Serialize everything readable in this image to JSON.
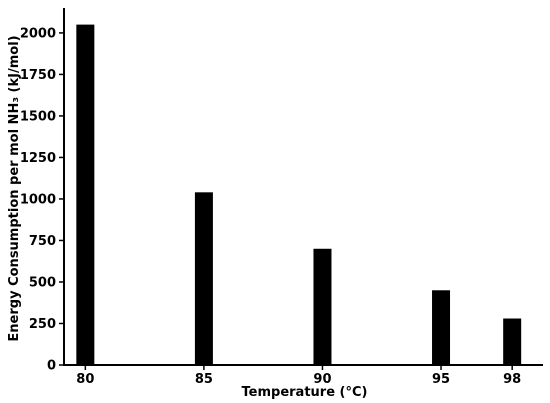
{
  "chart_data": {
    "type": "bar",
    "title": "",
    "xlabel": "Temperature (°C)",
    "ylabel": "Energy Consumption per mol NH₃ (kJ/mol)",
    "x_axis_type": "numeric",
    "x": [
      80,
      85,
      90,
      95,
      98
    ],
    "x_ticks": [
      "80",
      "85",
      "90",
      "95",
      "98"
    ],
    "values": [
      2050,
      1040,
      700,
      450,
      280
    ],
    "ylim": [
      0,
      2150
    ],
    "xlim": [
      79.1,
      99.3
    ],
    "y_ticks": [
      0,
      250,
      500,
      750,
      1000,
      1250,
      1500,
      1750,
      2000
    ],
    "bar_color": "#000000",
    "grid": false,
    "legend": "none"
  }
}
